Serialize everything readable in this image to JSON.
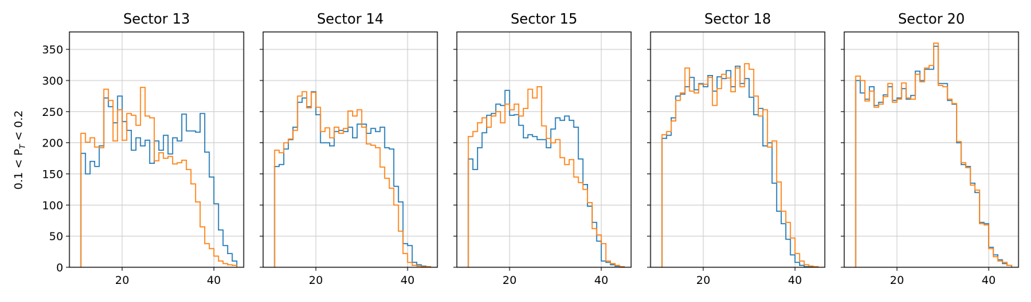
{
  "figure": {
    "ylabel": "0.1 < P",
    "ylabel_sub": "T",
    "ylabel_tail": " < 0.2",
    "xlim": [
      8.5,
      46.5
    ],
    "ylim": [
      0,
      378
    ],
    "xticks": [
      20,
      40
    ],
    "yticks": [
      0,
      50,
      100,
      150,
      200,
      250,
      300,
      350
    ],
    "grid": true,
    "colors": {
      "blue": "#1f77b4",
      "orange": "#ff7f0e"
    },
    "bin_edges": [
      11,
      12,
      13,
      14,
      15,
      16,
      17,
      18,
      19,
      20,
      21,
      22,
      23,
      24,
      25,
      26,
      27,
      28,
      29,
      30,
      31,
      32,
      33,
      34,
      35,
      36,
      37,
      38,
      39,
      40,
      41,
      42,
      43,
      44,
      45
    ]
  },
  "chart_data": [
    {
      "type": "histogram",
      "title": "Sector 13",
      "series": [
        {
          "color": "#1f77b4",
          "values": [
            183,
            150,
            170,
            162,
            195,
            272,
            258,
            232,
            275,
            234,
            220,
            188,
            208,
            195,
            204,
            167,
            203,
            188,
            212,
            182,
            208,
            203,
            246,
            219,
            219,
            217,
            247,
            185,
            145,
            102,
            60,
            35,
            22,
            10
          ]
        },
        {
          "color": "#ff7f0e",
          "values": [
            215,
            201,
            208,
            193,
            192,
            286,
            268,
            203,
            253,
            204,
            247,
            244,
            228,
            289,
            243,
            240,
            171,
            184,
            175,
            178,
            166,
            168,
            172,
            157,
            134,
            105,
            65,
            38,
            30,
            18,
            10,
            6,
            4,
            3
          ]
        }
      ]
    },
    {
      "type": "histogram",
      "title": "Sector 14",
      "series": [
        {
          "color": "#1f77b4",
          "values": [
            162,
            165,
            190,
            205,
            225,
            265,
            272,
            258,
            282,
            245,
            200,
            200,
            195,
            218,
            220,
            218,
            225,
            208,
            230,
            230,
            215,
            223,
            218,
            225,
            192,
            190,
            130,
            105,
            38,
            35,
            8,
            4,
            2,
            1
          ]
        },
        {
          "color": "#ff7f0e",
          "values": [
            188,
            184,
            200,
            206,
            220,
            275,
            282,
            256,
            281,
            257,
            218,
            224,
            208,
            225,
            215,
            223,
            251,
            243,
            253,
            225,
            198,
            196,
            192,
            161,
            143,
            127,
            100,
            58,
            22,
            8,
            3,
            2,
            1,
            1
          ]
        }
      ]
    },
    {
      "type": "histogram",
      "title": "Sector 15",
      "series": [
        {
          "color": "#1f77b4",
          "values": [
            174,
            157,
            192,
            216,
            244,
            247,
            262,
            260,
            284,
            244,
            245,
            228,
            208,
            213,
            210,
            205,
            205,
            192,
            222,
            240,
            236,
            243,
            236,
            225,
            174,
            133,
            98,
            72,
            42,
            10,
            8,
            4,
            2,
            1
          ]
        },
        {
          "color": "#ff7f0e",
          "values": [
            210,
            218,
            232,
            240,
            225,
            243,
            250,
            232,
            262,
            253,
            262,
            243,
            255,
            286,
            272,
            290,
            227,
            207,
            200,
            205,
            176,
            165,
            173,
            145,
            136,
            125,
            104,
            62,
            52,
            38,
            10,
            6,
            3,
            1
          ]
        }
      ]
    },
    {
      "type": "histogram",
      "title": "Sector 18",
      "series": [
        {
          "color": "#1f77b4",
          "values": [
            207,
            212,
            240,
            275,
            278,
            290,
            305,
            285,
            295,
            290,
            308,
            283,
            306,
            303,
            316,
            290,
            323,
            295,
            303,
            273,
            245,
            255,
            195,
            200,
            135,
            90,
            70,
            45,
            20,
            8,
            3,
            1,
            1,
            1
          ]
        },
        {
          "color": "#ff7f0e",
          "values": [
            213,
            218,
            235,
            268,
            280,
            320,
            283,
            280,
            294,
            294,
            305,
            260,
            287,
            310,
            304,
            282,
            320,
            290,
            327,
            318,
            275,
            243,
            253,
            193,
            203,
            137,
            90,
            72,
            47,
            22,
            10,
            4,
            2,
            1
          ]
        }
      ]
    },
    {
      "type": "histogram",
      "title": "Sector 20",
      "series": [
        {
          "color": "#1f77b4",
          "values": [
            300,
            280,
            270,
            290,
            260,
            265,
            277,
            290,
            268,
            272,
            287,
            270,
            276,
            315,
            300,
            318,
            318,
            355,
            295,
            295,
            268,
            262,
            200,
            165,
            162,
            135,
            120,
            72,
            70,
            32,
            20,
            12,
            6,
            3
          ]
        },
        {
          "color": "#ff7f0e",
          "values": [
            307,
            300,
            267,
            283,
            257,
            262,
            274,
            295,
            265,
            270,
            296,
            272,
            270,
            310,
            298,
            320,
            324,
            360,
            292,
            290,
            270,
            263,
            202,
            168,
            160,
            132,
            124,
            70,
            68,
            30,
            17,
            10,
            8,
            3
          ]
        }
      ]
    }
  ]
}
